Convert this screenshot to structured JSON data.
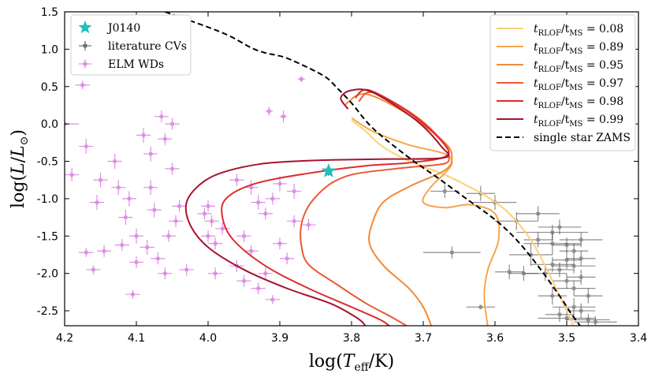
{
  "chart_data": {
    "type": "scatter",
    "xlabel": "log(T_eff/K)",
    "ylabel": "log(L/L_⊙)",
    "xlim": [
      4.2,
      3.4
    ],
    "ylim": [
      -2.7,
      1.5
    ],
    "xticks": [
      "4.2",
      "4.1",
      "4.0",
      "3.9",
      "3.8",
      "3.7",
      "3.6",
      "3.5",
      "3.4"
    ],
    "yticks": [
      "1.5",
      "1.0",
      "0.5",
      "0.0",
      "-0.5",
      "-1.0",
      "-1.5",
      "-2.0",
      "-2.5"
    ],
    "colors": {
      "J0140": "#1fbfbf",
      "cv": "#333333",
      "elm": "#d060d8",
      "zams": "#000000",
      "tracks": [
        "#fbd276",
        "#f8a54a",
        "#f28a38",
        "#ea5a32",
        "#dc2d2c",
        "#a8132e"
      ]
    },
    "legend_left": [
      {
        "label": "J0140",
        "key": "J0140",
        "marker": "star-icon"
      },
      {
        "label": "literature CVs",
        "key": "cv",
        "marker": "errorbar-point-icon"
      },
      {
        "label": "ELM WDs",
        "key": "elm",
        "marker": "errorbar-point-icon"
      }
    ],
    "legend_right": [
      {
        "label_main": "t",
        "sub1": "RLOF",
        "label_mid": "/t",
        "sub2": "MS",
        "label_end": " = 0.08",
        "key": 0
      },
      {
        "label_main": "t",
        "sub1": "RLOF",
        "label_mid": "/t",
        "sub2": "MS",
        "label_end": " = 0.89",
        "key": 1
      },
      {
        "label_main": "t",
        "sub1": "RLOF",
        "label_mid": "/t",
        "sub2": "MS",
        "label_end": " = 0.95",
        "key": 2
      },
      {
        "label_main": "t",
        "sub1": "RLOF",
        "label_mid": "/t",
        "sub2": "MS",
        "label_end": " = 0.97",
        "key": 3
      },
      {
        "label_main": "t",
        "sub1": "RLOF",
        "label_mid": "/t",
        "sub2": "MS",
        "label_end": " = 0.98",
        "key": 4
      },
      {
        "label_main": "t",
        "sub1": "RLOF",
        "label_mid": "/t",
        "sub2": "MS",
        "label_end": " = 0.99",
        "key": 5
      },
      {
        "label_main": "single star ZAMS",
        "key": "zams"
      }
    ],
    "series": [
      {
        "name": "J0140",
        "points": [
          [
            3.832,
            -0.63,
            0,
            0.06
          ]
        ]
      },
      {
        "name": "single star ZAMS",
        "x": [
          4.06,
          3.98,
          3.94,
          3.92,
          3.905,
          3.89,
          3.86,
          3.835,
          3.82,
          3.8,
          3.77,
          3.72,
          3.68,
          3.64,
          3.6,
          3.57,
          3.54,
          3.51,
          3.495,
          3.48
        ],
        "y": [
          1.5,
          1.22,
          1.02,
          0.95,
          0.92,
          0.88,
          0.75,
          0.62,
          0.48,
          0.28,
          -0.06,
          -0.45,
          -0.72,
          -1.0,
          -1.28,
          -1.55,
          -1.9,
          -2.3,
          -2.52,
          -2.72
        ]
      },
      {
        "name": "t_RLOF/t_MS = 0.08",
        "x": [
          3.8,
          3.78,
          3.76,
          3.73,
          3.7,
          3.67,
          3.64,
          3.61,
          3.58,
          3.55,
          3.53,
          3.515,
          3.5,
          3.49
        ],
        "y": [
          0.05,
          -0.1,
          -0.28,
          -0.45,
          -0.57,
          -0.68,
          -0.82,
          -0.98,
          -1.2,
          -1.55,
          -1.9,
          -2.2,
          -2.5,
          -2.72
        ]
      },
      {
        "name": "t_RLOF/t_MS = 0.89",
        "x": [
          3.8,
          3.77,
          3.72,
          3.67,
          3.66,
          3.67,
          3.69,
          3.7,
          3.67,
          3.635,
          3.6,
          3.595,
          3.61,
          3.615,
          3.61
        ],
        "y": [
          0.08,
          -0.1,
          -0.28,
          -0.4,
          -0.52,
          -0.66,
          -0.85,
          -1.05,
          -1.12,
          -1.08,
          -1.2,
          -1.55,
          -1.95,
          -2.3,
          -2.72
        ]
      },
      {
        "name": "t_RLOF/t_MS = 0.95",
        "x": [
          3.81,
          3.78,
          3.72,
          3.67,
          3.66,
          3.67,
          3.72,
          3.755,
          3.77,
          3.775,
          3.755,
          3.72,
          3.7,
          3.688
        ],
        "y": [
          0.25,
          0.4,
          0.12,
          -0.25,
          -0.45,
          -0.62,
          -0.84,
          -1.04,
          -1.3,
          -1.6,
          -1.9,
          -2.2,
          -2.45,
          -2.72
        ]
      },
      {
        "name": "t_RLOF/t_MS = 0.97",
        "x": [
          3.79,
          3.77,
          3.71,
          3.67,
          3.665,
          3.67,
          3.72,
          3.79,
          3.82,
          3.84,
          3.86,
          3.87,
          3.87,
          3.86,
          3.82,
          3.78,
          3.745,
          3.72
        ],
        "y": [
          0.3,
          0.42,
          0.1,
          -0.27,
          -0.42,
          -0.53,
          -0.58,
          -0.66,
          -0.75,
          -0.88,
          -1.1,
          -1.35,
          -1.62,
          -1.88,
          -2.15,
          -2.4,
          -2.58,
          -2.72
        ]
      },
      {
        "name": "t_RLOF/t_MS = 0.98",
        "x": [
          3.795,
          3.775,
          3.715,
          3.67,
          3.67,
          3.72,
          3.78,
          3.86,
          3.935,
          3.975,
          3.98,
          3.965,
          3.92,
          3.86,
          3.8,
          3.76,
          3.745
        ],
        "y": [
          0.35,
          0.45,
          0.12,
          -0.28,
          -0.44,
          -0.52,
          -0.56,
          -0.66,
          -0.8,
          -1.0,
          -1.25,
          -1.55,
          -1.9,
          -2.2,
          -2.45,
          -2.62,
          -2.72
        ]
      },
      {
        "name": "t_RLOF/t_MS = 0.99",
        "x": [
          3.805,
          3.815,
          3.8,
          3.77,
          3.71,
          3.675,
          3.67,
          3.75,
          3.82,
          3.88,
          3.93,
          3.98,
          4.01,
          4.03,
          4.025,
          4.0,
          3.95,
          3.89,
          3.83,
          3.8,
          3.785,
          3.78
        ],
        "y": [
          0.2,
          0.35,
          0.45,
          0.42,
          0.05,
          -0.3,
          -0.45,
          -0.47,
          -0.48,
          -0.5,
          -0.54,
          -0.65,
          -0.8,
          -1.05,
          -1.35,
          -1.65,
          -1.95,
          -2.2,
          -2.4,
          -2.55,
          -2.65,
          -2.72
        ]
      },
      {
        "name": "literature CVs",
        "points": [
          [
            3.67,
            -0.9,
            0.02,
            0.09
          ],
          [
            3.62,
            -0.93,
            0.02,
            0.1
          ],
          [
            3.6,
            -1.05,
            0.03,
            0.1
          ],
          [
            3.57,
            -1.3,
            0.03,
            0.12
          ],
          [
            3.54,
            -1.2,
            0.03,
            0.1
          ],
          [
            3.52,
            -1.45,
            0.05,
            0.1
          ],
          [
            3.52,
            -1.6,
            0.04,
            0.15
          ],
          [
            3.55,
            -1.75,
            0.03,
            0.15
          ],
          [
            3.5,
            -1.62,
            0.02,
            0.1
          ],
          [
            3.49,
            -1.7,
            0.02,
            0.1
          ],
          [
            3.5,
            -1.82,
            0.02,
            0.12
          ],
          [
            3.49,
            -1.9,
            0.03,
            0.1
          ],
          [
            3.51,
            -1.95,
            0.02,
            0.1
          ],
          [
            3.48,
            -1.8,
            0.02,
            0.1
          ],
          [
            3.53,
            -2.0,
            0.03,
            0.1
          ],
          [
            3.5,
            -2.1,
            0.02,
            0.1
          ],
          [
            3.48,
            -2.05,
            0.02,
            0.1
          ],
          [
            3.49,
            -2.2,
            0.03,
            0.1
          ],
          [
            3.52,
            -2.3,
            0.02,
            0.12
          ],
          [
            3.47,
            -2.3,
            0.02,
            0.1
          ],
          [
            3.49,
            -2.45,
            0.03,
            0.12
          ],
          [
            3.5,
            -2.6,
            0.04,
            0.08
          ],
          [
            3.47,
            -2.62,
            0.03,
            0.08
          ],
          [
            3.48,
            -2.5,
            0.02,
            0.1
          ],
          [
            3.46,
            -2.65,
            0.03,
            0.08
          ],
          [
            3.51,
            -2.55,
            0.02,
            0.1
          ],
          [
            3.54,
            -1.55,
            0.02,
            0.1
          ],
          [
            3.56,
            -2.0,
            0.02,
            0.1
          ],
          [
            3.66,
            -1.72,
            0.04,
            0.08
          ],
          [
            3.62,
            -2.45,
            0.02,
            0.03
          ],
          [
            3.58,
            -1.98,
            0.02,
            0.1
          ],
          [
            3.51,
            -1.38,
            0.03,
            0.1
          ],
          [
            3.52,
            -1.88,
            0.03,
            0.1
          ],
          [
            3.48,
            -1.55,
            0.03,
            0.1
          ]
        ]
      },
      {
        "name": "ELM WDs",
        "points": [
          [
            4.2,
            0.0,
            0.02,
            0.03
          ],
          [
            4.175,
            0.52,
            0.01,
            0.06
          ],
          [
            4.19,
            -0.68,
            0.01,
            0.09
          ],
          [
            4.17,
            -0.3,
            0.01,
            0.1
          ],
          [
            4.15,
            -0.75,
            0.01,
            0.1
          ],
          [
            4.155,
            -1.05,
            0.01,
            0.1
          ],
          [
            4.17,
            -1.72,
            0.01,
            0.06
          ],
          [
            4.16,
            -1.95,
            0.01,
            0.06
          ],
          [
            4.145,
            -1.7,
            0.01,
            0.08
          ],
          [
            4.13,
            -0.5,
            0.01,
            0.1
          ],
          [
            4.125,
            -0.85,
            0.01,
            0.1
          ],
          [
            4.11,
            -1.0,
            0.01,
            0.1
          ],
          [
            4.115,
            -1.25,
            0.01,
            0.1
          ],
          [
            4.1,
            -1.5,
            0.01,
            0.1
          ],
          [
            4.09,
            -0.15,
            0.01,
            0.1
          ],
          [
            4.08,
            -0.4,
            0.01,
            0.1
          ],
          [
            4.08,
            -0.85,
            0.01,
            0.1
          ],
          [
            4.075,
            -1.15,
            0.01,
            0.1
          ],
          [
            4.085,
            -1.65,
            0.01,
            0.1
          ],
          [
            4.065,
            0.1,
            0.01,
            0.08
          ],
          [
            4.06,
            -0.2,
            0.01,
            0.08
          ],
          [
            4.05,
            0.0,
            0.01,
            0.08
          ],
          [
            4.05,
            -0.6,
            0.01,
            0.08
          ],
          [
            4.045,
            -1.3,
            0.01,
            0.08
          ],
          [
            4.055,
            -1.5,
            0.01,
            0.08
          ],
          [
            4.04,
            -1.1,
            0.01,
            0.08
          ],
          [
            4.03,
            -1.95,
            0.01,
            0.08
          ],
          [
            4.07,
            -1.8,
            0.01,
            0.08
          ],
          [
            4.06,
            -2.0,
            0.01,
            0.08
          ],
          [
            4.1,
            -1.85,
            0.01,
            0.08
          ],
          [
            4.12,
            -1.62,
            0.01,
            0.08
          ],
          [
            4.105,
            -2.28,
            0.01,
            0.06
          ],
          [
            4.0,
            -1.1,
            0.01,
            0.08
          ],
          [
            4.005,
            -1.2,
            0.01,
            0.08
          ],
          [
            3.995,
            -1.3,
            0.01,
            0.08
          ],
          [
            4.0,
            -1.5,
            0.01,
            0.08
          ],
          [
            3.99,
            -1.6,
            0.01,
            0.08
          ],
          [
            3.98,
            -1.4,
            0.01,
            0.08
          ],
          [
            3.99,
            -2.0,
            0.01,
            0.08
          ],
          [
            3.96,
            -1.9,
            0.01,
            0.08
          ],
          [
            3.95,
            -2.1,
            0.01,
            0.08
          ],
          [
            3.93,
            -2.2,
            0.01,
            0.08
          ],
          [
            3.92,
            -1.2,
            0.01,
            0.08
          ],
          [
            3.91,
            -1.0,
            0.01,
            0.08
          ],
          [
            3.9,
            -1.6,
            0.01,
            0.08
          ],
          [
            3.89,
            -1.8,
            0.01,
            0.08
          ],
          [
            3.88,
            -1.3,
            0.01,
            0.08
          ],
          [
            3.87,
            0.6,
            0.005,
            0.04
          ],
          [
            3.915,
            0.17,
            0.005,
            0.06
          ],
          [
            3.895,
            0.1,
            0.005,
            0.08
          ],
          [
            3.88,
            -0.9,
            0.01,
            0.1
          ],
          [
            3.9,
            -0.8,
            0.01,
            0.1
          ],
          [
            3.94,
            -0.85,
            0.01,
            0.1
          ],
          [
            3.93,
            -1.05,
            0.01,
            0.1
          ],
          [
            3.95,
            -1.5,
            0.01,
            0.08
          ],
          [
            3.94,
            -1.7,
            0.01,
            0.08
          ],
          [
            3.92,
            -2.0,
            0.01,
            0.08
          ],
          [
            3.91,
            -2.35,
            0.01,
            0.06
          ],
          [
            3.96,
            -0.75,
            0.01,
            0.08
          ],
          [
            3.86,
            -1.35,
            0.01,
            0.08
          ]
        ]
      }
    ]
  }
}
